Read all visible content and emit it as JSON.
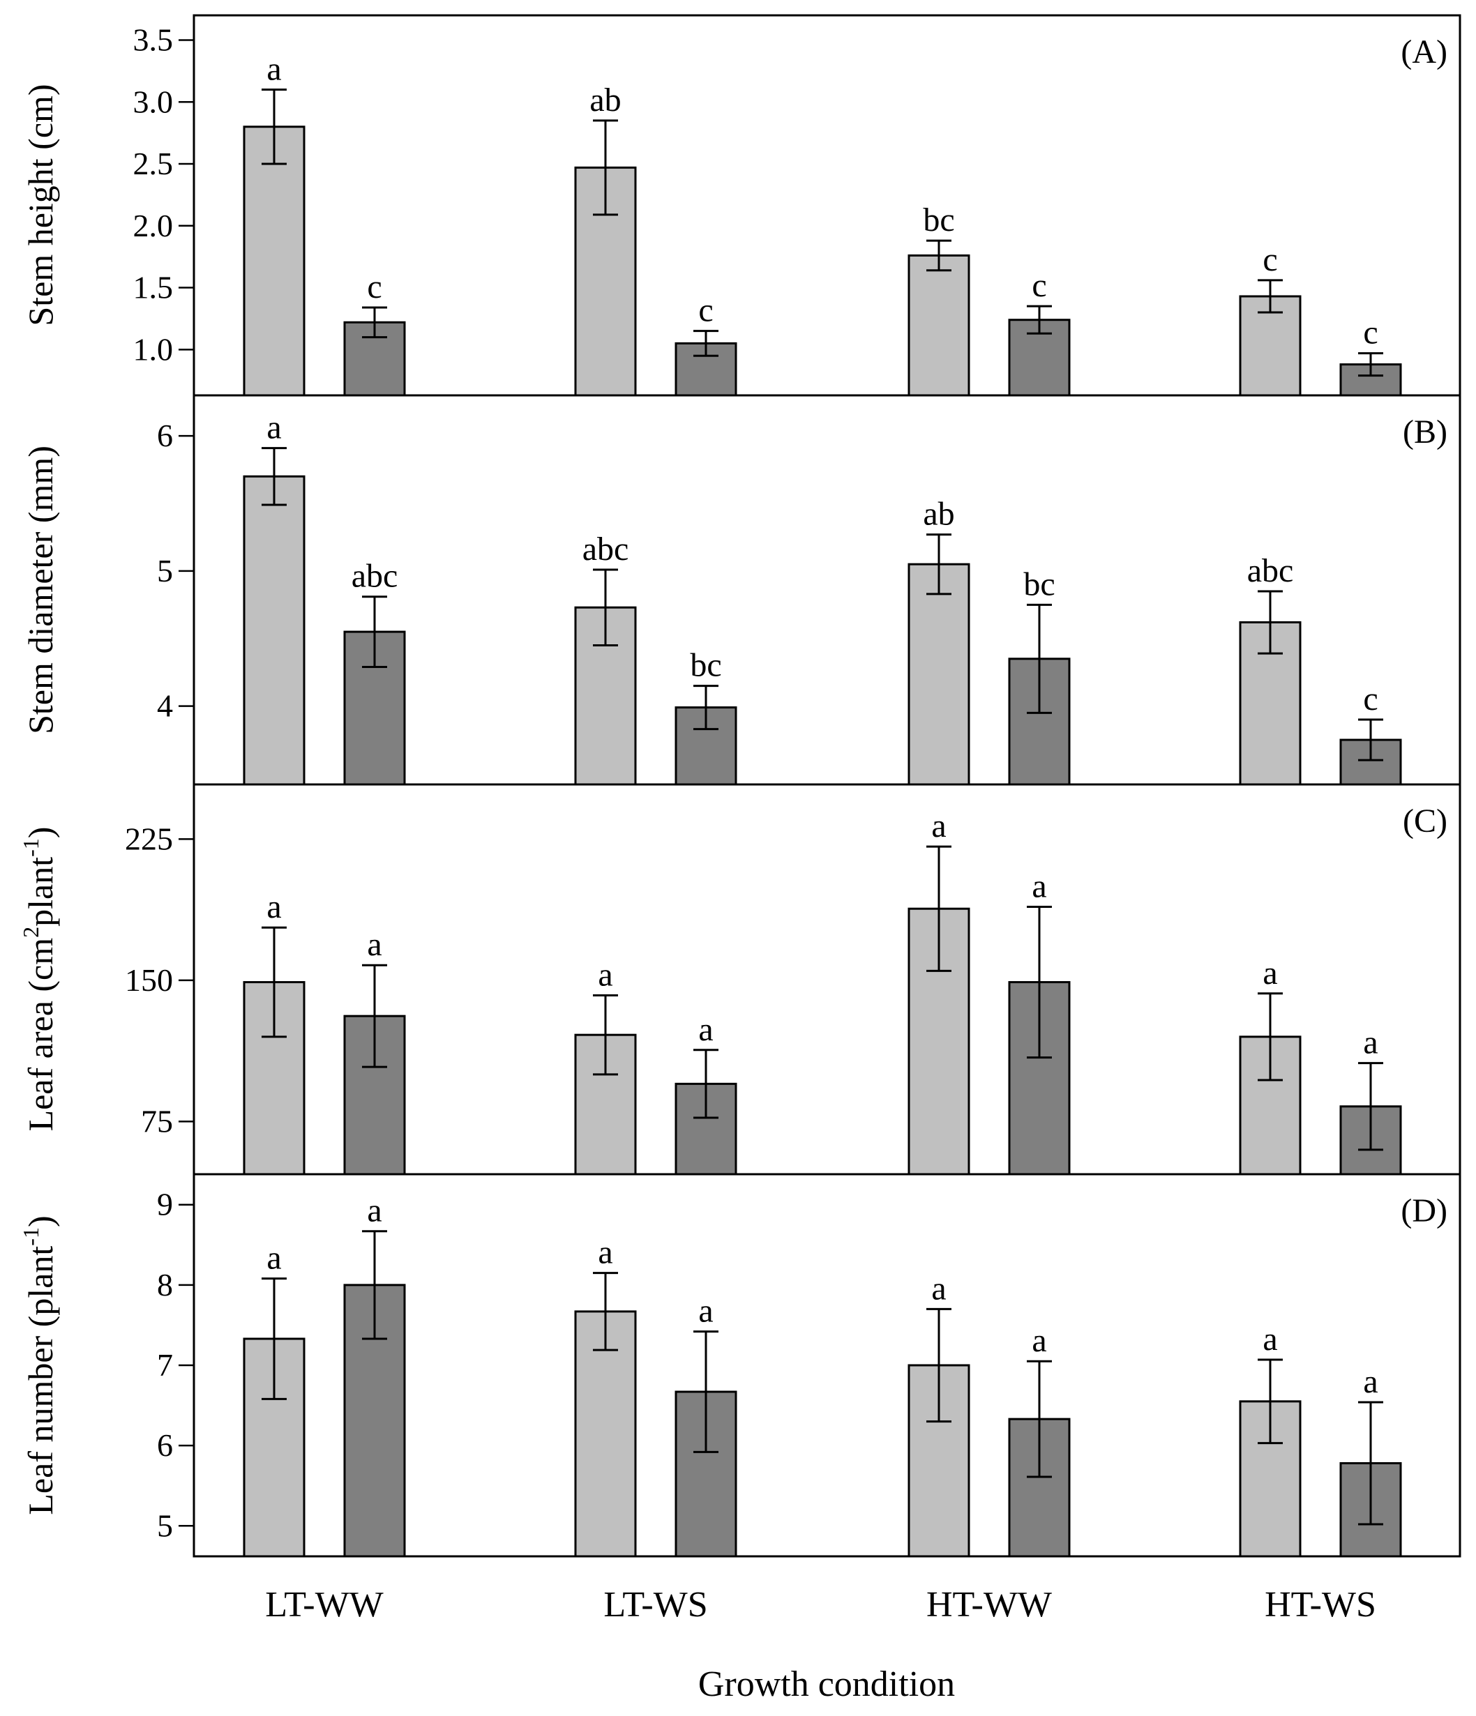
{
  "colors": {
    "series_1": "#c0c0c0",
    "series_2": "#808080"
  },
  "chart_data": [
    {
      "type": "bar",
      "panel": "(A)",
      "ylabel": "Stem height (cm)",
      "categories": [
        "LT-WW",
        "LT-WS",
        "HT-WW",
        "HT-WS"
      ],
      "ylim": [
        0.63,
        3.7
      ],
      "yticks": [
        1.0,
        1.5,
        2.0,
        2.5,
        3.0,
        3.5
      ],
      "series": [
        {
          "values": [
            2.8,
            2.47,
            1.76,
            1.43
          ],
          "errors": [
            0.3,
            0.38,
            0.12,
            0.13
          ],
          "letters": [
            "a",
            "ab",
            "bc",
            "c"
          ]
        },
        {
          "values": [
            1.22,
            1.05,
            1.24,
            0.88
          ],
          "errors": [
            0.12,
            0.1,
            0.11,
            0.09
          ],
          "letters": [
            "c",
            "c",
            "c",
            "c"
          ]
        }
      ]
    },
    {
      "type": "bar",
      "panel": "(B)",
      "ylabel": "Stem diameter (mm)",
      "categories": [
        "LT-WW",
        "LT-WS",
        "HT-WW",
        "HT-WS"
      ],
      "ylim": [
        3.42,
        6.3
      ],
      "yticks": [
        4,
        5,
        6
      ],
      "series": [
        {
          "values": [
            5.7,
            4.73,
            5.05,
            4.62
          ],
          "errors": [
            0.21,
            0.28,
            0.22,
            0.23
          ],
          "letters": [
            "a",
            "abc",
            "ab",
            "abc"
          ]
        },
        {
          "values": [
            4.55,
            3.99,
            4.35,
            3.75
          ],
          "errors": [
            0.26,
            0.16,
            0.4,
            0.15
          ],
          "letters": [
            "abc",
            "bc",
            "bc",
            "c"
          ]
        }
      ]
    },
    {
      "type": "bar",
      "panel": "(C)",
      "ylabel_main": "Leaf area (cm",
      "ylabel_sup1": "2",
      "ylabel_mid": "plant",
      "ylabel_sup2": "-1",
      "ylabel_end": ")",
      "categories": [
        "LT-WW",
        "LT-WS",
        "HT-WW",
        "HT-WS"
      ],
      "ylim": [
        47,
        254
      ],
      "yticks": [
        75,
        150,
        225
      ],
      "series": [
        {
          "values": [
            149,
            121,
            188,
            120
          ],
          "errors": [
            29,
            21,
            33,
            23
          ],
          "letters": [
            "a",
            "a",
            "a",
            "a"
          ]
        },
        {
          "values": [
            131,
            95,
            149,
            83
          ],
          "errors": [
            27,
            18,
            40,
            23
          ],
          "letters": [
            "a",
            "a",
            "a",
            "a"
          ]
        }
      ]
    },
    {
      "type": "bar",
      "panel": "(D)",
      "ylabel_main": "Leaf number (plant",
      "ylabel_sup": "-1",
      "ylabel_end": ")",
      "categories": [
        "LT-WW",
        "LT-WS",
        "HT-WW",
        "HT-WS"
      ],
      "ylim": [
        4.62,
        9.38
      ],
      "yticks": [
        5,
        6,
        7,
        8,
        9
      ],
      "series": [
        {
          "values": [
            7.33,
            7.67,
            7.0,
            6.55
          ],
          "errors": [
            0.75,
            0.48,
            0.7,
            0.52
          ],
          "letters": [
            "a",
            "a",
            "a",
            "a"
          ]
        },
        {
          "values": [
            8.0,
            6.67,
            6.33,
            5.78
          ],
          "errors": [
            0.67,
            0.75,
            0.72,
            0.76
          ],
          "letters": [
            "a",
            "a",
            "a",
            "a"
          ]
        }
      ]
    }
  ],
  "xlabel": "Growth condition"
}
